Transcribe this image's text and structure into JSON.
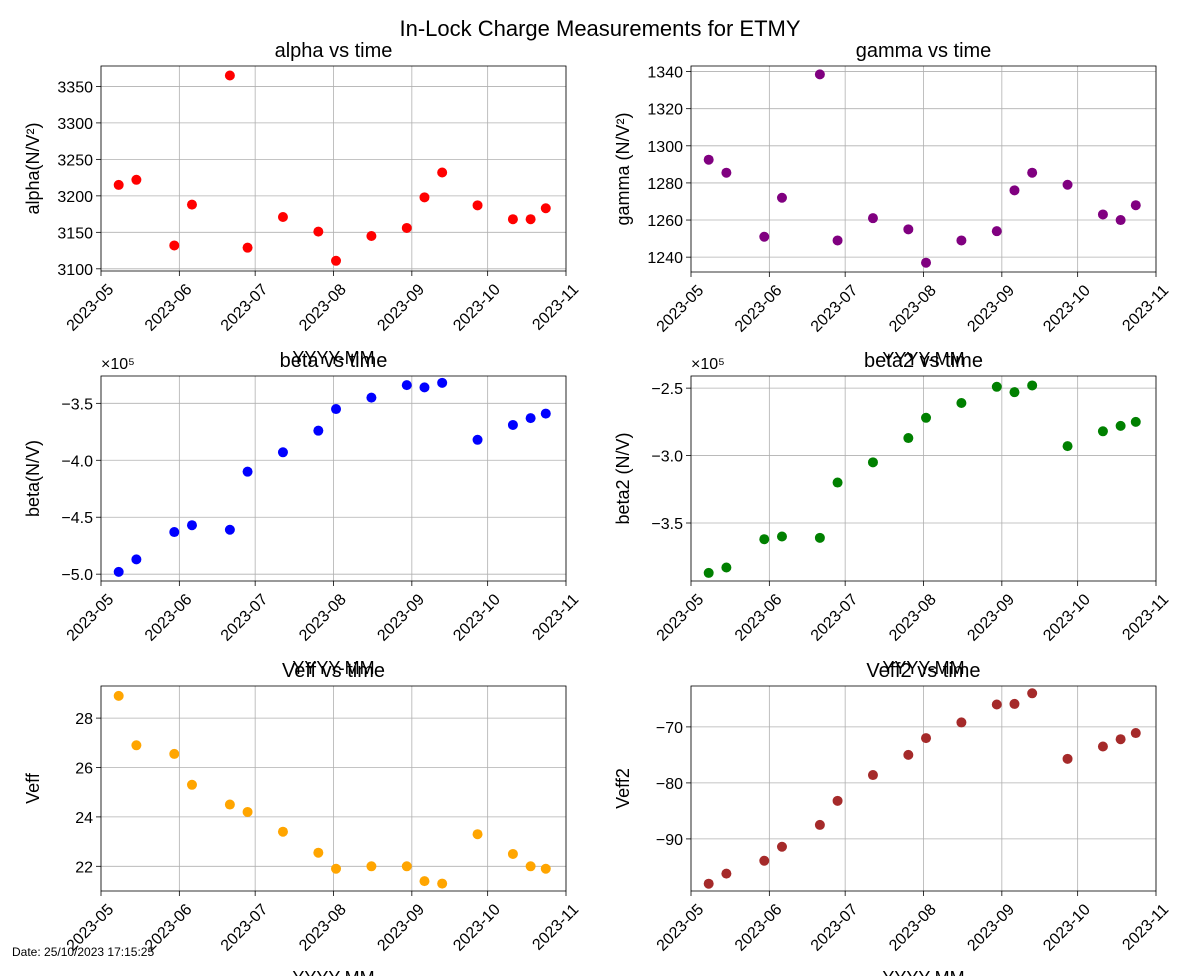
{
  "figure": {
    "suptitle": "In-Lock Charge Measurements for ETMY",
    "date_text": "Date: 25/10/2023 17:15:25"
  },
  "chart_data": [
    {
      "type": "scatter",
      "title": "alpha vs time",
      "xlabel": "YYYY-MM",
      "ylabel": "alpha(N/V²)",
      "color": "#ff0000",
      "xlim": [
        "2023-05-01",
        "2023-11-01"
      ],
      "ylim": [
        3097,
        3378
      ],
      "xticks": [
        "2023-05",
        "2023-06",
        "2023-07",
        "2023-08",
        "2023-09",
        "2023-10",
        "2023-11"
      ],
      "yticks": [
        3100,
        3150,
        3200,
        3250,
        3300,
        3350
      ],
      "ytick_labels": [
        "3100",
        "3150",
        "3200",
        "3250",
        "3300",
        "3350"
      ],
      "offset_label": "",
      "x": [
        "2023-05-08",
        "2023-05-15",
        "2023-05-30",
        "2023-06-06",
        "2023-06-21",
        "2023-06-28",
        "2023-07-12",
        "2023-07-26",
        "2023-08-02",
        "2023-08-16",
        "2023-08-30",
        "2023-09-06",
        "2023-09-13",
        "2023-09-27",
        "2023-10-11",
        "2023-10-18",
        "2023-10-24"
      ],
      "y": [
        3215,
        3222,
        3132,
        3188,
        3365,
        3129,
        3171,
        3151,
        3111,
        3145,
        3156,
        3198,
        3232,
        3187,
        3168,
        3168,
        3183
      ],
      "grid": true
    },
    {
      "type": "scatter",
      "title": "gamma vs time",
      "xlabel": "YYYY-MM",
      "ylabel": "gamma (N/V²)",
      "color": "#800080",
      "xlim": [
        "2023-05-01",
        "2023-11-01"
      ],
      "ylim": [
        1232,
        1343
      ],
      "xticks": [
        "2023-05",
        "2023-06",
        "2023-07",
        "2023-08",
        "2023-09",
        "2023-10",
        "2023-11"
      ],
      "yticks": [
        1240,
        1260,
        1280,
        1300,
        1320,
        1340
      ],
      "ytick_labels": [
        "1240",
        "1260",
        "1280",
        "1300",
        "1320",
        "1340"
      ],
      "offset_label": "",
      "x": [
        "2023-05-08",
        "2023-05-15",
        "2023-05-30",
        "2023-06-06",
        "2023-06-21",
        "2023-06-28",
        "2023-07-12",
        "2023-07-26",
        "2023-08-02",
        "2023-08-16",
        "2023-08-30",
        "2023-09-06",
        "2023-09-13",
        "2023-09-27",
        "2023-10-11",
        "2023-10-18",
        "2023-10-24"
      ],
      "y": [
        1292.5,
        1285.5,
        1251,
        1272,
        1338.5,
        1249,
        1261,
        1255,
        1237,
        1249,
        1254,
        1276,
        1285.5,
        1279,
        1263,
        1260,
        1268
      ],
      "grid": true
    },
    {
      "type": "scatter",
      "title": "beta vs time",
      "xlabel": "YYYY-MM",
      "ylabel": "beta(N/V)",
      "color": "#0000ff",
      "xlim": [
        "2023-05-01",
        "2023-11-01"
      ],
      "ylim": [
        -5.06,
        -3.26
      ],
      "xticks": [
        "2023-05",
        "2023-06",
        "2023-07",
        "2023-08",
        "2023-09",
        "2023-10",
        "2023-11"
      ],
      "yticks": [
        -5.0,
        -4.5,
        -4.0,
        -3.5
      ],
      "ytick_labels": [
        "−5.0",
        "−4.5",
        "−4.0",
        "−3.5"
      ],
      "offset_label": "×10⁵",
      "x": [
        "2023-05-08",
        "2023-05-15",
        "2023-05-30",
        "2023-06-06",
        "2023-06-21",
        "2023-06-28",
        "2023-07-12",
        "2023-07-26",
        "2023-08-02",
        "2023-08-16",
        "2023-08-30",
        "2023-09-06",
        "2023-09-13",
        "2023-09-27",
        "2023-10-11",
        "2023-10-18",
        "2023-10-24"
      ],
      "y": [
        -4.98,
        -4.87,
        -4.63,
        -4.57,
        -4.61,
        -4.1,
        -3.93,
        -3.74,
        -3.55,
        -3.45,
        -3.34,
        -3.36,
        -3.32,
        -3.82,
        -3.69,
        -3.63,
        -3.59
      ],
      "grid": true
    },
    {
      "type": "scatter",
      "title": "beta2 vs time",
      "xlabel": "YYYY-MM",
      "ylabel": "beta2 (N/V)",
      "color": "#008000",
      "xlim": [
        "2023-05-01",
        "2023-11-01"
      ],
      "ylim": [
        -3.93,
        -2.41
      ],
      "xticks": [
        "2023-05",
        "2023-06",
        "2023-07",
        "2023-08",
        "2023-09",
        "2023-10",
        "2023-11"
      ],
      "yticks": [
        -3.5,
        -3.0,
        -2.5
      ],
      "ytick_labels": [
        "−3.5",
        "−3.0",
        "−2.5"
      ],
      "offset_label": "×10⁵",
      "x": [
        "2023-05-08",
        "2023-05-15",
        "2023-05-30",
        "2023-06-06",
        "2023-06-21",
        "2023-06-28",
        "2023-07-12",
        "2023-07-26",
        "2023-08-02",
        "2023-08-16",
        "2023-08-30",
        "2023-09-06",
        "2023-09-13",
        "2023-09-27",
        "2023-10-11",
        "2023-10-18",
        "2023-10-24"
      ],
      "y": [
        -3.87,
        -3.83,
        -3.62,
        -3.6,
        -3.61,
        -3.2,
        -3.05,
        -2.87,
        -2.72,
        -2.61,
        -2.49,
        -2.53,
        -2.48,
        -2.93,
        -2.82,
        -2.78,
        -2.75
      ],
      "grid": true
    },
    {
      "type": "scatter",
      "title": "Veff vs time",
      "xlabel": "YYYY-MM",
      "ylabel": "Veff",
      "color": "#ffa500",
      "xlim": [
        "2023-05-01",
        "2023-11-01"
      ],
      "ylim": [
        21.0,
        29.3
      ],
      "xticks": [
        "2023-05",
        "2023-06",
        "2023-07",
        "2023-08",
        "2023-09",
        "2023-10",
        "2023-11"
      ],
      "yticks": [
        22,
        24,
        26,
        28
      ],
      "ytick_labels": [
        "22",
        "24",
        "26",
        "28"
      ],
      "offset_label": "",
      "x": [
        "2023-05-08",
        "2023-05-15",
        "2023-05-30",
        "2023-06-06",
        "2023-06-21",
        "2023-06-28",
        "2023-07-12",
        "2023-07-26",
        "2023-08-02",
        "2023-08-16",
        "2023-08-30",
        "2023-09-06",
        "2023-09-13",
        "2023-09-27",
        "2023-10-11",
        "2023-10-18",
        "2023-10-24"
      ],
      "y": [
        28.9,
        26.9,
        26.55,
        25.3,
        24.5,
        24.2,
        23.4,
        22.55,
        21.9,
        22.0,
        22.0,
        21.4,
        21.3,
        23.3,
        22.5,
        22.0,
        21.9
      ],
      "grid": true
    },
    {
      "type": "scatter",
      "title": "Veff2 vs time",
      "xlabel": "YYYY-MM",
      "ylabel": "Veff2",
      "color": "#a52a2a",
      "xlim": [
        "2023-05-01",
        "2023-11-01"
      ],
      "ylim": [
        -99.3,
        -62.7
      ],
      "xticks": [
        "2023-05",
        "2023-06",
        "2023-07",
        "2023-08",
        "2023-09",
        "2023-10",
        "2023-11"
      ],
      "yticks": [
        -90,
        -80,
        -70
      ],
      "ytick_labels": [
        "−90",
        "−80",
        "−70"
      ],
      "offset_label": "",
      "x": [
        "2023-05-08",
        "2023-05-15",
        "2023-05-30",
        "2023-06-06",
        "2023-06-21",
        "2023-06-28",
        "2023-07-12",
        "2023-07-26",
        "2023-08-02",
        "2023-08-16",
        "2023-08-30",
        "2023-09-06",
        "2023-09-13",
        "2023-09-27",
        "2023-10-11",
        "2023-10-18",
        "2023-10-24"
      ],
      "y": [
        -98.0,
        -96.2,
        -93.9,
        -91.4,
        -87.5,
        -83.2,
        -78.6,
        -75.0,
        -72.0,
        -69.2,
        -66.0,
        -65.9,
        -64.0,
        -75.7,
        -73.5,
        -72.2,
        -71.1
      ],
      "grid": true
    }
  ]
}
